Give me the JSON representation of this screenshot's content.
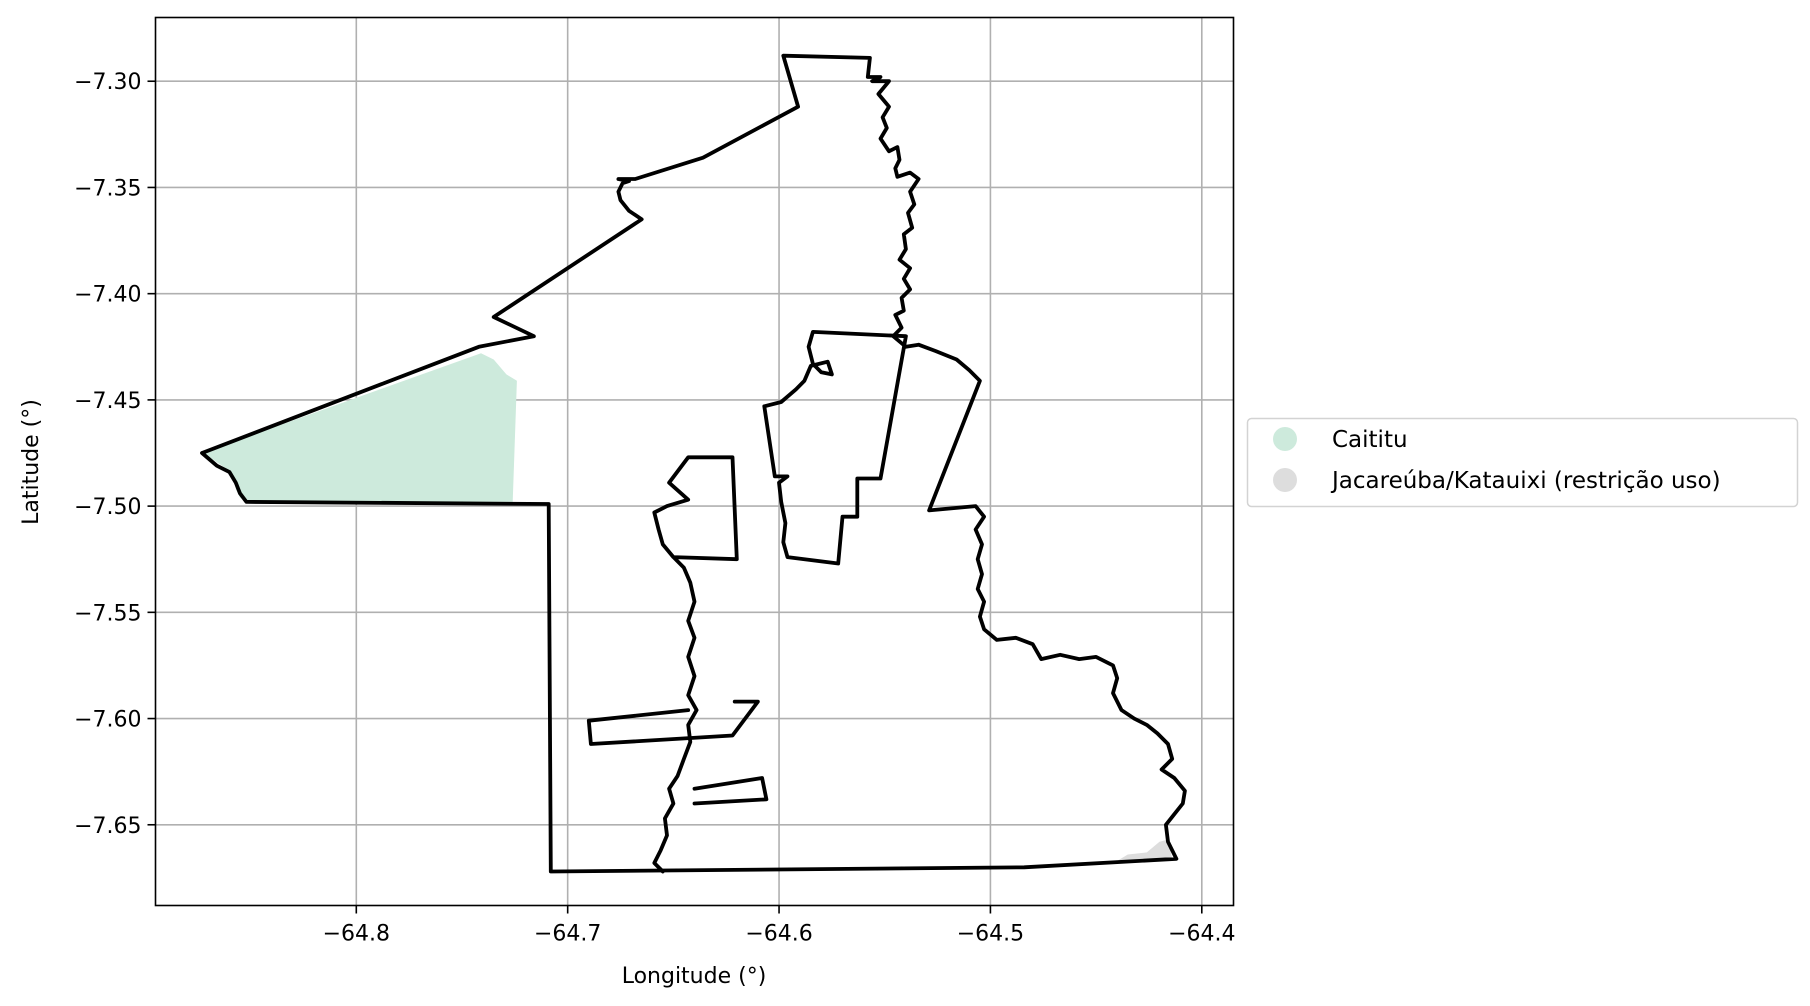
{
  "chart_data": {
    "type": "map",
    "title": "",
    "xlabel": "Longitude (°)",
    "ylabel": "Latitude (°)",
    "xlim": [
      -64.895,
      -64.385
    ],
    "ylim": [
      -7.688,
      -7.27
    ],
    "xticks": [
      {
        "value": -64.8,
        "label": "−64.8"
      },
      {
        "value": -64.7,
        "label": "−64.7"
      },
      {
        "value": -64.6,
        "label": "−64.6"
      },
      {
        "value": -64.5,
        "label": "−64.5"
      },
      {
        "value": -64.4,
        "label": "−64.4"
      }
    ],
    "yticks": [
      {
        "value": -7.3,
        "label": "−7.30"
      },
      {
        "value": -7.35,
        "label": "−7.35"
      },
      {
        "value": -7.4,
        "label": "−7.40"
      },
      {
        "value": -7.45,
        "label": "−7.45"
      },
      {
        "value": -7.5,
        "label": "−7.50"
      },
      {
        "value": -7.55,
        "label": "−7.55"
      },
      {
        "value": -7.6,
        "label": "−7.60"
      },
      {
        "value": -7.65,
        "label": "−7.65"
      }
    ],
    "grid": true,
    "legend_position": "outside-right",
    "series": [
      {
        "name": "Caititu",
        "color": "#cdeadc",
        "polygon": [
          [
            -64.873,
            -7.475
          ],
          [
            -64.741,
            -7.428
          ],
          [
            -64.735,
            -7.431
          ],
          [
            -64.729,
            -7.438
          ],
          [
            -64.724,
            -7.441
          ],
          [
            -64.726,
            -7.498
          ],
          [
            -64.852,
            -7.498
          ],
          [
            -64.855,
            -7.496
          ],
          [
            -64.857,
            -7.492
          ],
          [
            -64.858,
            -7.487
          ],
          [
            -64.862,
            -7.482
          ],
          [
            -64.868,
            -7.478
          ]
        ]
      },
      {
        "name": "Jacareúba/Katauixi (restrição uso)",
        "color": "#dddddd",
        "polygon": [
          [
            -64.44,
            -7.667
          ],
          [
            -64.435,
            -7.664
          ],
          [
            -64.426,
            -7.663
          ],
          [
            -64.42,
            -7.658
          ],
          [
            -64.416,
            -7.657
          ],
          [
            -64.414,
            -7.666
          ],
          [
            -64.43,
            -7.667
          ]
        ]
      }
    ],
    "boundaries": [
      [
        [
          -64.873,
          -7.475
        ],
        [
          -64.742,
          -7.425
        ],
        [
          -64.716,
          -7.42
        ],
        [
          -64.735,
          -7.411
        ],
        [
          -64.665,
          -7.365
        ],
        [
          -64.671,
          -7.361
        ],
        [
          -64.675,
          -7.356
        ],
        [
          -64.676,
          -7.352
        ],
        [
          -64.674,
          -7.348
        ],
        [
          -64.671,
          -7.347
        ],
        [
          -64.676,
          -7.346
        ],
        [
          -64.668,
          -7.346
        ],
        [
          -64.636,
          -7.336
        ],
        [
          -64.591,
          -7.312
        ],
        [
          -64.598,
          -7.288
        ],
        [
          -64.557,
          -7.289
        ],
        [
          -64.558,
          -7.298
        ],
        [
          -64.552,
          -7.298
        ],
        [
          -64.556,
          -7.3
        ],
        [
          -64.548,
          -7.3
        ],
        [
          -64.553,
          -7.306
        ],
        [
          -64.548,
          -7.312
        ],
        [
          -64.551,
          -7.317
        ],
        [
          -64.549,
          -7.322
        ],
        [
          -64.552,
          -7.327
        ],
        [
          -64.548,
          -7.333
        ],
        [
          -64.544,
          -7.331
        ],
        [
          -64.543,
          -7.337
        ],
        [
          -64.545,
          -7.341
        ],
        [
          -64.544,
          -7.345
        ],
        [
          -64.538,
          -7.343
        ],
        [
          -64.534,
          -7.346
        ],
        [
          -64.538,
          -7.352
        ],
        [
          -64.536,
          -7.358
        ],
        [
          -64.539,
          -7.362
        ],
        [
          -64.537,
          -7.369
        ],
        [
          -64.541,
          -7.372
        ],
        [
          -64.54,
          -7.379
        ],
        [
          -64.543,
          -7.384
        ],
        [
          -64.538,
          -7.388
        ],
        [
          -64.541,
          -7.393
        ],
        [
          -64.538,
          -7.398
        ],
        [
          -64.542,
          -7.402
        ],
        [
          -64.541,
          -7.408
        ],
        [
          -64.545,
          -7.41
        ],
        [
          -64.542,
          -7.416
        ],
        [
          -64.546,
          -7.42
        ],
        [
          -64.54,
          -7.425
        ],
        [
          -64.534,
          -7.424
        ],
        [
          -64.526,
          -7.427
        ],
        [
          -64.516,
          -7.431
        ],
        [
          -64.51,
          -7.436
        ],
        [
          -64.505,
          -7.441
        ],
        [
          -64.529,
          -7.502
        ],
        [
          -64.507,
          -7.5
        ],
        [
          -64.503,
          -7.505
        ],
        [
          -64.507,
          -7.511
        ],
        [
          -64.504,
          -7.518
        ],
        [
          -64.506,
          -7.525
        ],
        [
          -64.504,
          -7.532
        ],
        [
          -64.506,
          -7.539
        ],
        [
          -64.503,
          -7.545
        ],
        [
          -64.505,
          -7.552
        ],
        [
          -64.503,
          -7.558
        ],
        [
          -64.497,
          -7.563
        ],
        [
          -64.488,
          -7.562
        ],
        [
          -64.48,
          -7.565
        ],
        [
          -64.476,
          -7.572
        ],
        [
          -64.467,
          -7.57
        ],
        [
          -64.458,
          -7.572
        ],
        [
          -64.45,
          -7.571
        ],
        [
          -64.442,
          -7.575
        ],
        [
          -64.44,
          -7.581
        ],
        [
          -64.442,
          -7.588
        ],
        [
          -64.438,
          -7.596
        ],
        [
          -64.432,
          -7.6
        ],
        [
          -64.426,
          -7.603
        ],
        [
          -64.421,
          -7.607
        ],
        [
          -64.416,
          -7.612
        ],
        [
          -64.414,
          -7.619
        ],
        [
          -64.419,
          -7.624
        ],
        [
          -64.413,
          -7.628
        ],
        [
          -64.408,
          -7.634
        ],
        [
          -64.409,
          -7.64
        ],
        [
          -64.413,
          -7.645
        ],
        [
          -64.417,
          -7.65
        ],
        [
          -64.416,
          -7.658
        ],
        [
          -64.412,
          -7.666
        ],
        [
          -64.484,
          -7.67
        ],
        [
          -64.708,
          -7.672
        ],
        [
          -64.709,
          -7.499
        ],
        [
          -64.852,
          -7.498
        ],
        [
          -64.855,
          -7.494
        ],
        [
          -64.857,
          -7.489
        ],
        [
          -64.86,
          -7.484
        ],
        [
          -64.866,
          -7.481
        ],
        [
          -64.873,
          -7.475
        ]
      ],
      [
        [
          -64.655,
          -7.672
        ],
        [
          -64.659,
          -7.668
        ],
        [
          -64.656,
          -7.662
        ],
        [
          -64.653,
          -7.655
        ],
        [
          -64.654,
          -7.647
        ],
        [
          -64.65,
          -7.64
        ],
        [
          -64.652,
          -7.633
        ],
        [
          -64.648,
          -7.627
        ],
        [
          -64.645,
          -7.619
        ],
        [
          -64.642,
          -7.611
        ],
        [
          -64.643,
          -7.603
        ],
        [
          -64.639,
          -7.596
        ],
        [
          -64.643,
          -7.589
        ],
        [
          -64.64,
          -7.58
        ],
        [
          -64.643,
          -7.571
        ],
        [
          -64.64,
          -7.562
        ],
        [
          -64.643,
          -7.554
        ],
        [
          -64.64,
          -7.545
        ],
        [
          -64.642,
          -7.536
        ],
        [
          -64.645,
          -7.529
        ],
        [
          -64.65,
          -7.524
        ],
        [
          -64.655,
          -7.518
        ],
        [
          -64.657,
          -7.511
        ],
        [
          -64.659,
          -7.503
        ],
        [
          -64.653,
          -7.5
        ],
        [
          -64.643,
          -7.497
        ],
        [
          -64.652,
          -7.489
        ],
        [
          -64.643,
          -7.477
        ],
        [
          -64.622,
          -7.477
        ],
        [
          -64.62,
          -7.525
        ],
        [
          -64.65,
          -7.524
        ]
      ],
      [
        [
          -64.607,
          -7.453
        ],
        [
          -64.602,
          -7.486
        ],
        [
          -64.596,
          -7.486
        ],
        [
          -64.6,
          -7.489
        ],
        [
          -64.599,
          -7.498
        ],
        [
          -64.597,
          -7.508
        ],
        [
          -64.598,
          -7.517
        ],
        [
          -64.596,
          -7.524
        ],
        [
          -64.572,
          -7.527
        ],
        [
          -64.57,
          -7.505
        ],
        [
          -64.563,
          -7.505
        ],
        [
          -64.563,
          -7.487
        ],
        [
          -64.552,
          -7.487
        ],
        [
          -64.54,
          -7.42
        ],
        [
          -64.584,
          -7.418
        ],
        [
          -64.586,
          -7.425
        ],
        [
          -64.584,
          -7.433
        ],
        [
          -64.58,
          -7.437
        ],
        [
          -64.575,
          -7.438
        ],
        [
          -64.577,
          -7.432
        ],
        [
          -64.585,
          -7.434
        ],
        [
          -64.588,
          -7.441
        ],
        [
          -64.592,
          -7.445
        ],
        [
          -64.599,
          -7.451
        ],
        [
          -64.607,
          -7.453
        ]
      ],
      [
        [
          -64.621,
          -7.592
        ],
        [
          -64.61,
          -7.592
        ],
        [
          -64.622,
          -7.608
        ],
        [
          -64.689,
          -7.612
        ],
        [
          -64.69,
          -7.601
        ],
        [
          -64.643,
          -7.596
        ]
      ],
      [
        [
          -64.64,
          -7.633
        ],
        [
          -64.608,
          -7.628
        ],
        [
          -64.606,
          -7.638
        ],
        [
          -64.64,
          -7.64
        ]
      ]
    ]
  }
}
